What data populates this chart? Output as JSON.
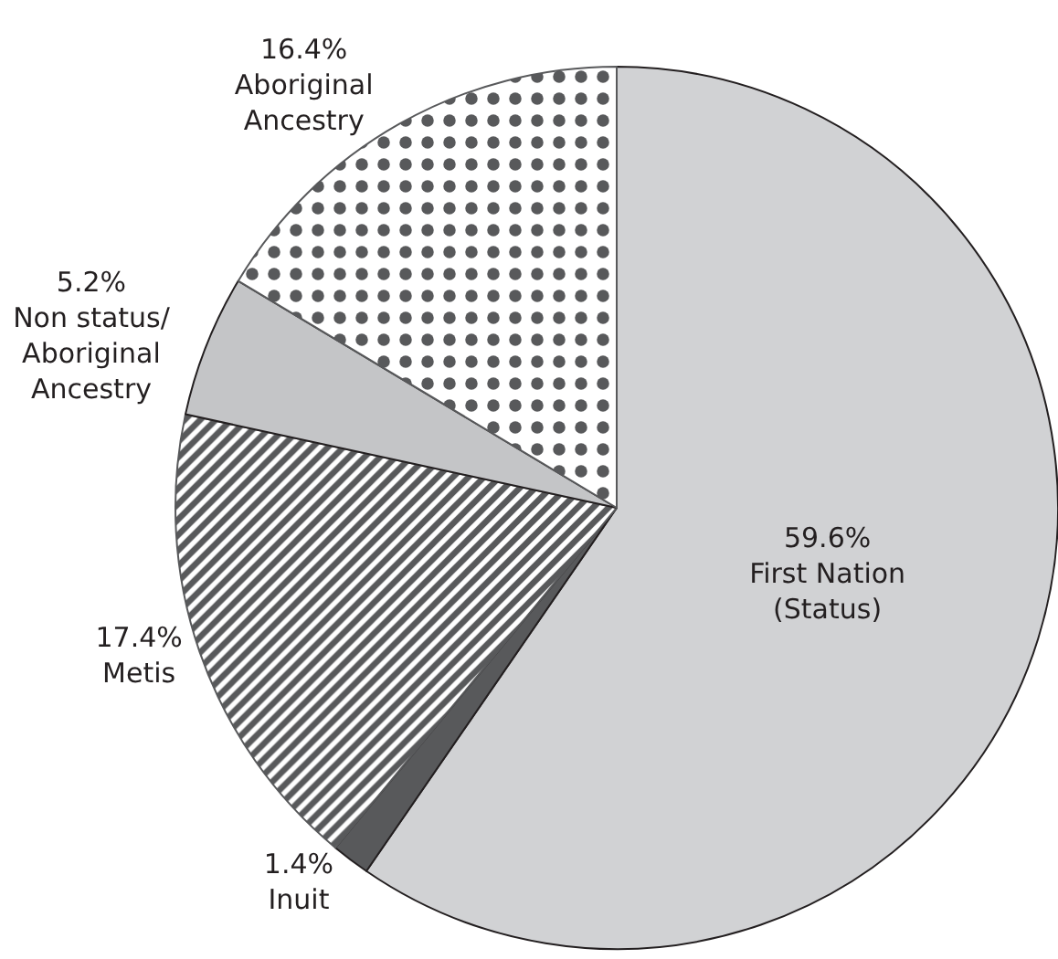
{
  "chart_data": {
    "type": "pie",
    "categories": [
      "First Nation\n(Status)",
      "Inuit",
      "Metis",
      "Non status/\nAboriginal\nAncestry",
      "Aboriginal\nAncestry"
    ],
    "values": [
      59.6,
      1.4,
      17.4,
      5.2,
      16.4
    ],
    "value_labels": [
      "59.6%",
      "1.4%",
      "17.4%",
      "5.2%",
      "16.4%"
    ],
    "colors": [
      "#d1d2d4",
      "#58595b",
      "#58595b",
      "#c4c5c7",
      "#58595b"
    ],
    "legend": false
  }
}
